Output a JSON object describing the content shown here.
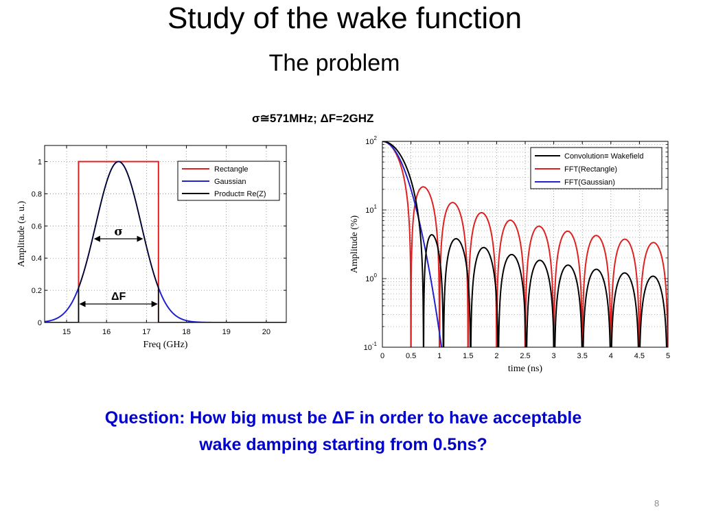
{
  "slide": {
    "title": "Study of the wake function",
    "subtitle": "The problem",
    "params": "σ≅571MHz;   ΔF=2GHZ",
    "question_line1": "Question: How big must be ΔF in order to have acceptable",
    "question_line2": "wake damping starting from 0.5ns?",
    "page_number": "8"
  },
  "chart_data": [
    {
      "type": "line",
      "xlabel": "Freq (GHz)",
      "ylabel": "Amplitude (a. u.)",
      "xlim": [
        14.45,
        20.5
      ],
      "ylim": [
        0,
        1.1
      ],
      "xticks": [
        15,
        16,
        17,
        18,
        19,
        20
      ],
      "yticks": [
        0,
        0.2,
        0.4,
        0.6,
        0.8,
        1
      ],
      "ytick_labels": [
        "0",
        "0.2",
        "0.4",
        "0.6",
        "0.8",
        "1"
      ],
      "grid": true,
      "legend_position": "top-right",
      "annotations": [
        "σ",
        "ΔF"
      ],
      "series": [
        {
          "name": "Rectangle",
          "color": "#e02020",
          "shape": "rectangle",
          "low": 15.3,
          "high": 17.3,
          "height": 1
        },
        {
          "name": "Gaussian",
          "color": "#2020d0",
          "shape": "gaussian",
          "center": 16.3,
          "sigma": 0.571,
          "height": 1
        },
        {
          "name": "Product≡ Re(Z)",
          "color": "#000000",
          "shape": "product"
        }
      ]
    },
    {
      "type": "line",
      "xlabel": "time (ns)",
      "ylabel": "Amplitude (%)",
      "xlim": [
        0,
        5
      ],
      "ylim": [
        0.1,
        100
      ],
      "yscale": "log",
      "xticks": [
        0,
        0.5,
        1,
        1.5,
        2,
        2.5,
        3,
        3.5,
        4,
        4.5,
        5
      ],
      "xtick_labels": [
        "0",
        "0.5",
        "1",
        "1.5",
        "2",
        "2.5",
        "3",
        "3.5",
        "4",
        "4.5",
        "5"
      ],
      "ytick_base": "10",
      "ytick_exponents": [
        "-1",
        "0",
        "1",
        "2"
      ],
      "grid": true,
      "legend_position": "top-right",
      "series": [
        {
          "name": "Convolution≡ Wakefield",
          "color": "#000000",
          "kind": "conv"
        },
        {
          "name": "FFT(Rectangle)",
          "color": "#e02020",
          "kind": "sinc",
          "delta_f_ghz": 2
        },
        {
          "name": "FFT(Gaussian)",
          "color": "#2020d0",
          "kind": "gauss",
          "sigma_ghz": 0.571
        }
      ]
    }
  ]
}
